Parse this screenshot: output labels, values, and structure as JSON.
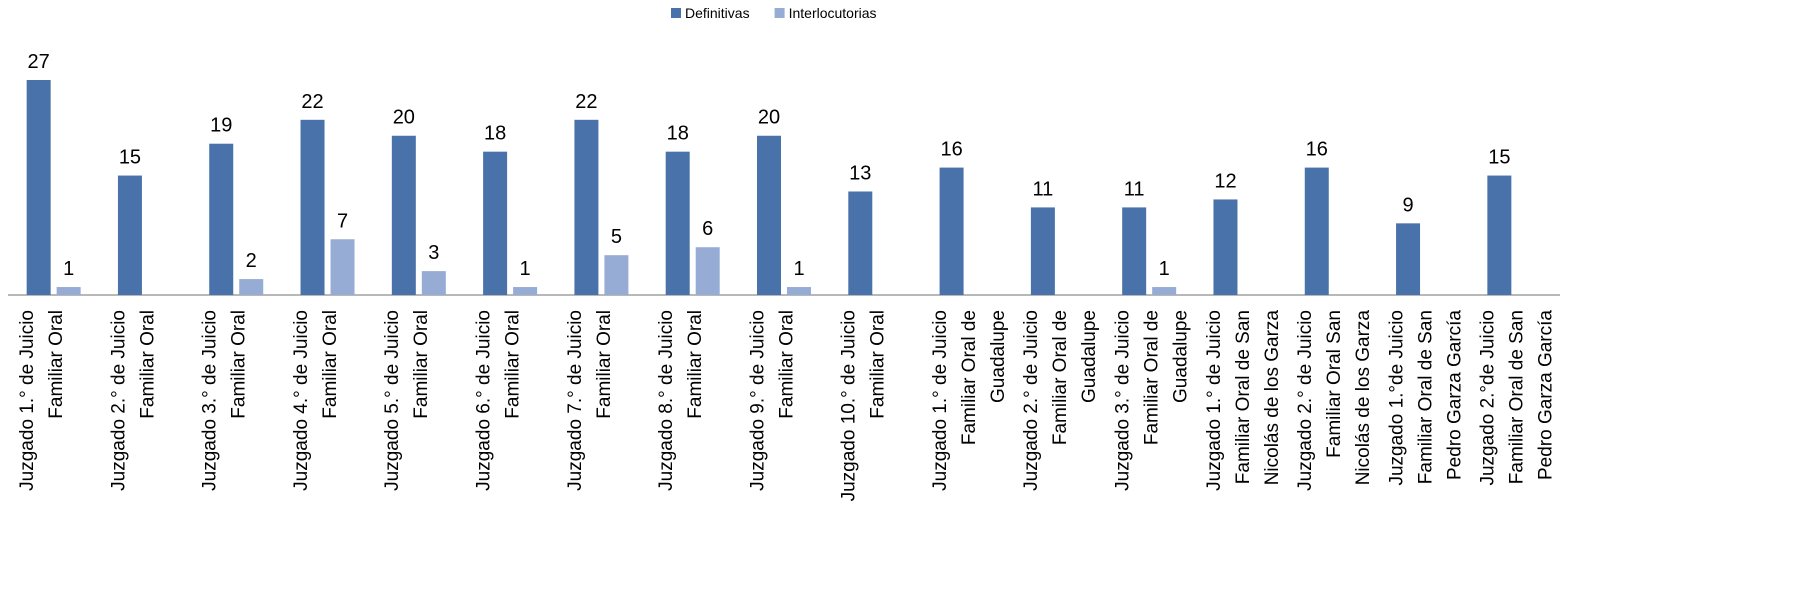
{
  "chart_data": {
    "type": "bar",
    "categories": [
      "Juzgado 1.° de Juicio Familiar Oral",
      "Juzgado 2.° de Juicio Familiar Oral",
      "Juzgado 3.° de Juicio Familiar Oral",
      "Juzgado 4.° de Juicio Familiar Oral",
      "Juzgado 5.° de Juicio Familiar Oral",
      "Juzgado 6.° de Juicio Familiar Oral",
      "Juzgado 7.° de Juicio Familiar Oral",
      "Juzgado 8.° de Juicio Familiar Oral",
      "Juzgado 9.° de Juicio Familiar Oral",
      "Juzgado 10.° de Juicio Familiar Oral",
      "Juzgado 1.° de Juicio Familiar Oral de Guadalupe",
      "Juzgado 2.° de Juicio Familiar Oral de Guadalupe",
      "Juzgado 3.° de Juicio Familiar Oral de Guadalupe",
      "Juzgado 1.° de Juicio Familiar Oral de San Nicolás de los Garza",
      "Juzgado 2.° de Juicio Familiar Oral San Nicolás de los Garza",
      "Juzgado 1.°de Juicio Familiar Oral de San Pedro Garza García",
      "Juzgado 2.°de Juicio Familiar Oral de San Pedro Garza García"
    ],
    "series": [
      {
        "name": "Definitivas",
        "color": "#4a72aa",
        "values": [
          27,
          15,
          19,
          22,
          20,
          18,
          22,
          18,
          20,
          13,
          16,
          11,
          11,
          12,
          16,
          9,
          15
        ]
      },
      {
        "name": "Interlocutorias",
        "color": "#96acd4",
        "values": [
          1,
          null,
          2,
          7,
          3,
          1,
          5,
          6,
          1,
          null,
          null,
          null,
          1,
          null,
          null,
          null,
          null
        ]
      }
    ],
    "legend": "top"
  }
}
